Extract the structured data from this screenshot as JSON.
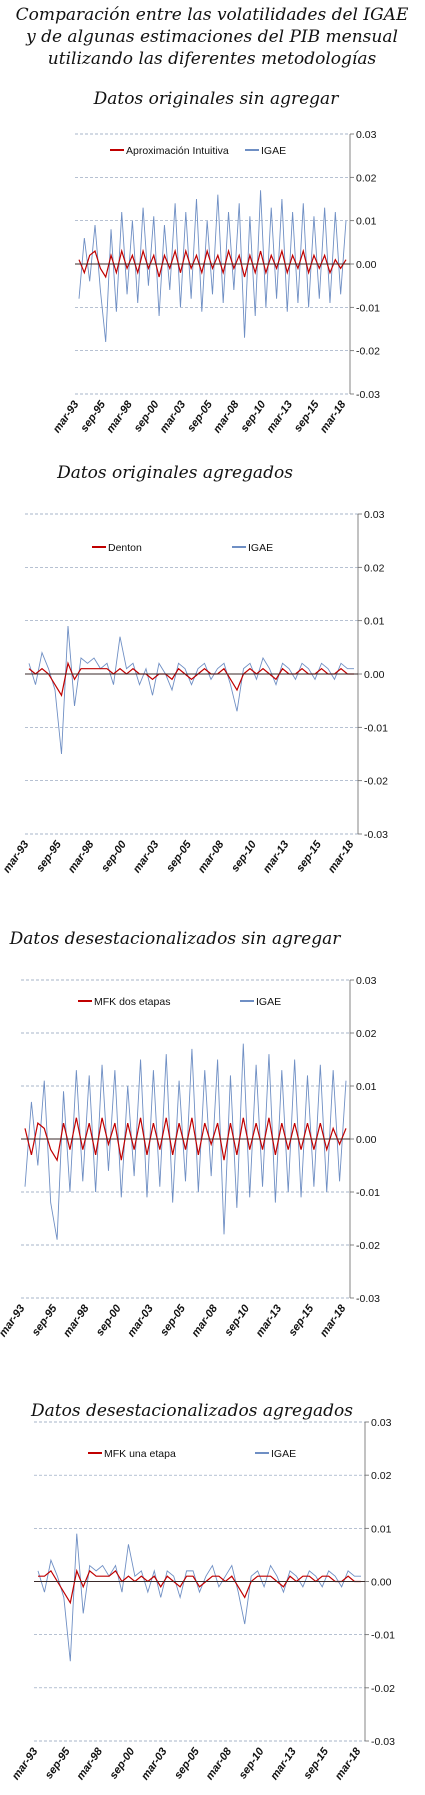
{
  "header": {
    "title": [
      "Comparación entre las volatilidades del IGAE",
      "y de algunas estimaciones del PIB mensual",
      "utilizando las diferentes metodologías"
    ]
  },
  "chart_data": [
    {
      "type": "line",
      "title": "Datos originales sin agregar",
      "categories": [
        "mar-93",
        null,
        null,
        null,
        null,
        "sep-95",
        null,
        null,
        null,
        null,
        "mar-98",
        null,
        null,
        null,
        null,
        "sep-00",
        null,
        null,
        null,
        null,
        "mar-03",
        null,
        null,
        null,
        null,
        "sep-05",
        null,
        null,
        null,
        null,
        "mar-08",
        null,
        null,
        null,
        null,
        "sep-10",
        null,
        null,
        null,
        null,
        "mar-13",
        null,
        null,
        null,
        null,
        "sep-15",
        null,
        null,
        null,
        null,
        "mar-18"
      ],
      "series": [
        {
          "name": "Aproximación Intuitiva",
          "color": "#c00000",
          "values": [
            0.001,
            -0.002,
            0.002,
            0.003,
            -0.001,
            -0.003,
            0.002,
            -0.002,
            0.003,
            -0.001,
            0.002,
            -0.002,
            0.003,
            -0.001,
            0.002,
            -0.003,
            0.002,
            -0.001,
            0.003,
            -0.002,
            0.003,
            -0.001,
            0.002,
            -0.002,
            0.003,
            -0.001,
            0.002,
            -0.002,
            0.003,
            -0.001,
            0.002,
            -0.003,
            0.002,
            -0.002,
            0.003,
            -0.002,
            0.002,
            -0.001,
            0.003,
            -0.002,
            0.002,
            -0.001,
            0.003,
            -0.002,
            0.002,
            -0.001,
            0.002,
            -0.002,
            0.001,
            -0.001,
            0.001
          ]
        },
        {
          "name": "IGAE",
          "color": "#6f8fc4",
          "values": [
            -0.008,
            0.006,
            -0.004,
            0.009,
            -0.006,
            -0.018,
            0.008,
            -0.011,
            0.012,
            -0.007,
            0.01,
            -0.009,
            0.013,
            -0.005,
            0.011,
            -0.012,
            0.009,
            -0.006,
            0.014,
            -0.01,
            0.012,
            -0.008,
            0.015,
            -0.011,
            0.01,
            -0.007,
            0.016,
            -0.009,
            0.012,
            -0.006,
            0.014,
            -0.017,
            0.011,
            -0.012,
            0.017,
            -0.01,
            0.013,
            -0.008,
            0.015,
            -0.011,
            0.012,
            -0.009,
            0.014,
            -0.01,
            0.011,
            -0.008,
            0.013,
            -0.009,
            0.012,
            -0.007,
            0.01
          ]
        }
      ],
      "ylim": [
        -0.03,
        0.03
      ],
      "yticks": [
        -0.03,
        -0.02,
        -0.01,
        {
          "value": 0,
          "label": "0.00"
        },
        0.01,
        0.02,
        0.03
      ],
      "grid": true
    },
    {
      "type": "line",
      "title": "Datos originales agregados",
      "categories": [
        "mar-93",
        null,
        null,
        null,
        null,
        "sep-95",
        null,
        null,
        null,
        null,
        "mar-98",
        null,
        null,
        null,
        null,
        "sep-00",
        null,
        null,
        null,
        null,
        "mar-03",
        null,
        null,
        null,
        null,
        "sep-05",
        null,
        null,
        null,
        null,
        "mar-08",
        null,
        null,
        null,
        null,
        "sep-10",
        null,
        null,
        null,
        null,
        "mar-13",
        null,
        null,
        null,
        null,
        "sep-15",
        null,
        null,
        null,
        null,
        "mar-18"
      ],
      "series": [
        {
          "name": "Denton",
          "color": "#c00000",
          "values": [
            0.001,
            0.0,
            0.001,
            0.0,
            -0.002,
            -0.004,
            0.002,
            -0.001,
            0.001,
            0.001,
            0.001,
            0.001,
            0.001,
            0.0,
            0.001,
            0.0,
            0.001,
            0.0,
            0.0,
            -0.001,
            0.0,
            0.0,
            -0.001,
            0.001,
            0.0,
            -0.001,
            0.0,
            0.001,
            0.0,
            0.0,
            0.001,
            -0.001,
            -0.003,
            0.0,
            0.001,
            0.0,
            0.001,
            0.0,
            -0.001,
            0.001,
            0.0,
            0.0,
            0.001,
            0.0,
            0.0,
            0.001,
            0.0,
            0.0,
            0.001,
            0.0,
            0.0
          ]
        },
        {
          "name": "IGAE",
          "color": "#6f8fc4",
          "values": [
            0.002,
            -0.002,
            0.004,
            0.001,
            -0.003,
            -0.015,
            0.009,
            -0.006,
            0.003,
            0.002,
            0.003,
            0.001,
            0.002,
            -0.002,
            0.007,
            0.001,
            0.002,
            -0.002,
            0.001,
            -0.004,
            0.002,
            0.0,
            -0.003,
            0.002,
            0.001,
            -0.002,
            0.001,
            0.002,
            -0.001,
            0.001,
            0.002,
            -0.002,
            -0.007,
            0.001,
            0.002,
            -0.001,
            0.003,
            0.001,
            -0.002,
            0.002,
            0.001,
            -0.001,
            0.002,
            0.001,
            -0.001,
            0.002,
            0.001,
            -0.001,
            0.002,
            0.001,
            0.001
          ]
        }
      ],
      "ylim": [
        -0.03,
        0.03
      ],
      "yticks": [
        -0.03,
        -0.02,
        -0.01,
        {
          "value": 0,
          "label": "0.00"
        },
        0.01,
        0.02,
        0.03
      ],
      "grid": true
    },
    {
      "type": "line",
      "title": "Datos desestacionalizados sin agregar",
      "categories": [
        "mar-93",
        null,
        null,
        null,
        null,
        "sep-95",
        null,
        null,
        null,
        null,
        "mar-98",
        null,
        null,
        null,
        null,
        "sep-00",
        null,
        null,
        null,
        null,
        "mar-03",
        null,
        null,
        null,
        null,
        "sep-05",
        null,
        null,
        null,
        null,
        "mar-08",
        null,
        null,
        null,
        null,
        "sep-10",
        null,
        null,
        null,
        null,
        "mar-13",
        null,
        null,
        null,
        null,
        "sep-15",
        null,
        null,
        null,
        null,
        "mar-18"
      ],
      "series": [
        {
          "name": "MFK dos etapas",
          "color": "#c00000",
          "values": [
            0.002,
            -0.003,
            0.003,
            0.002,
            -0.002,
            -0.004,
            0.003,
            -0.002,
            0.004,
            -0.002,
            0.003,
            -0.003,
            0.004,
            -0.001,
            0.003,
            -0.004,
            0.003,
            -0.002,
            0.004,
            -0.003,
            0.003,
            -0.002,
            0.004,
            -0.003,
            0.003,
            -0.002,
            0.004,
            -0.003,
            0.003,
            -0.001,
            0.003,
            -0.004,
            0.003,
            -0.003,
            0.004,
            -0.002,
            0.003,
            -0.002,
            0.004,
            -0.003,
            0.003,
            -0.002,
            0.003,
            -0.002,
            0.003,
            -0.002,
            0.003,
            -0.002,
            0.002,
            -0.001,
            0.002
          ]
        },
        {
          "name": "IGAE",
          "color": "#6f8fc4",
          "values": [
            -0.009,
            0.007,
            -0.005,
            0.011,
            -0.012,
            -0.019,
            0.009,
            -0.01,
            0.013,
            -0.008,
            0.012,
            -0.01,
            0.014,
            -0.006,
            0.013,
            -0.011,
            0.01,
            -0.007,
            0.015,
            -0.011,
            0.013,
            -0.009,
            0.016,
            -0.012,
            0.011,
            -0.008,
            0.017,
            -0.01,
            0.013,
            -0.007,
            0.015,
            -0.018,
            0.012,
            -0.013,
            0.018,
            -0.011,
            0.014,
            -0.009,
            0.016,
            -0.012,
            0.013,
            -0.01,
            0.015,
            -0.011,
            0.012,
            -0.009,
            0.014,
            -0.01,
            0.013,
            -0.008,
            0.011
          ]
        }
      ],
      "ylim": [
        -0.03,
        0.03
      ],
      "yticks": [
        -0.03,
        -0.02,
        -0.01,
        {
          "value": 0,
          "label": "0.00"
        },
        0.01,
        0.02,
        0.03
      ],
      "grid": true
    },
    {
      "type": "line",
      "title": "Datos desestacionalizados agregados",
      "categories": [
        "mar-93",
        null,
        null,
        null,
        null,
        "sep-95",
        null,
        null,
        null,
        null,
        "mar-98",
        null,
        null,
        null,
        null,
        "sep-00",
        null,
        null,
        null,
        null,
        "mar-03",
        null,
        null,
        null,
        null,
        "sep-05",
        null,
        null,
        null,
        null,
        "mar-08",
        null,
        null,
        null,
        null,
        "sep-10",
        null,
        null,
        null,
        null,
        "mar-13",
        null,
        null,
        null,
        null,
        "sep-15",
        null,
        null,
        null,
        null,
        "mar-18"
      ],
      "series": [
        {
          "name": "MFK una etapa",
          "color": "#c00000",
          "values": [
            0.001,
            0.001,
            0.002,
            0.0,
            -0.002,
            -0.004,
            0.002,
            -0.001,
            0.002,
            0.001,
            0.001,
            0.001,
            0.002,
            0.0,
            0.001,
            0.0,
            0.001,
            0.0,
            0.001,
            -0.001,
            0.001,
            0.0,
            -0.001,
            0.001,
            0.001,
            -0.001,
            0.0,
            0.001,
            0.001,
            0.0,
            0.001,
            -0.001,
            -0.003,
            0.0,
            0.001,
            0.001,
            0.001,
            0.0,
            -0.001,
            0.001,
            0.0,
            0.001,
            0.001,
            0.0,
            0.001,
            0.001,
            0.0,
            0.0,
            0.001,
            0.0,
            0.0
          ]
        },
        {
          "name": "IGAE",
          "color": "#6f8fc4",
          "values": [
            0.002,
            -0.002,
            0.004,
            0.001,
            -0.003,
            -0.015,
            0.009,
            -0.006,
            0.003,
            0.002,
            0.003,
            0.001,
            0.003,
            -0.002,
            0.007,
            0.001,
            0.002,
            -0.002,
            0.002,
            -0.003,
            0.002,
            0.001,
            -0.003,
            0.002,
            0.002,
            -0.002,
            0.001,
            0.003,
            -0.001,
            0.001,
            0.003,
            -0.002,
            -0.008,
            0.001,
            0.002,
            -0.001,
            0.003,
            0.001,
            -0.002,
            0.002,
            0.001,
            -0.001,
            0.002,
            0.001,
            -0.001,
            0.002,
            0.001,
            -0.001,
            0.002,
            0.001,
            0.001
          ]
        }
      ],
      "ylim": [
        -0.03,
        0.03
      ],
      "yticks": [
        -0.03,
        -0.02,
        -0.01,
        {
          "value": 0,
          "label": "0.00"
        },
        0.01,
        0.02,
        0.03
      ],
      "grid": true
    }
  ]
}
